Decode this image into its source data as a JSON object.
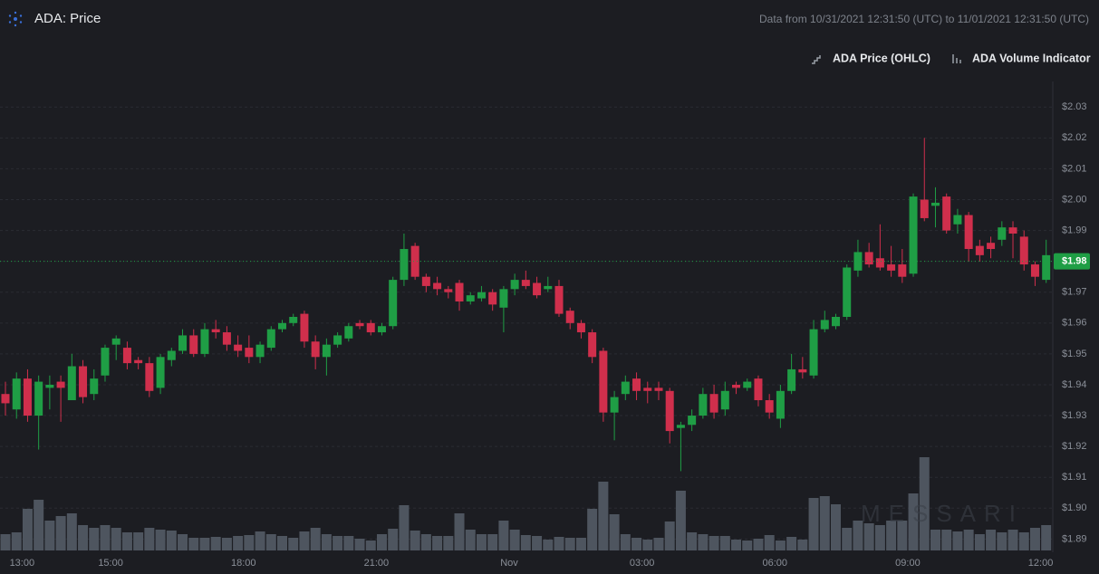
{
  "chart_data": {
    "type": "candlestick",
    "title": "ADA: Price",
    "subtitle": "Data from 10/31/2021 12:31:50 (UTC) to 11/01/2021 12:31:50 (UTC)",
    "legend": [
      "ADA Price (OHLC)",
      "ADA Volume Indicator"
    ],
    "watermark": "MESSARI",
    "up_color": "#1f9e45",
    "down_color": "#d02f4c",
    "volume_color": "#4e555f",
    "open": [
      1.937,
      1.932,
      1.942,
      1.93,
      1.939,
      1.941,
      1.935,
      1.946,
      1.937,
      1.943,
      1.953,
      1.952,
      1.948,
      1.947,
      1.939,
      1.948,
      1.951,
      1.956,
      1.95,
      1.958,
      1.957,
      1.953,
      1.952,
      1.949,
      1.952,
      1.958,
      1.96,
      1.963,
      1.954,
      1.949,
      1.953,
      1.955,
      1.96,
      1.96,
      1.957,
      1.959,
      1.974,
      1.985,
      1.975,
      1.973,
      1.971,
      1.973,
      1.967,
      1.968,
      1.97,
      1.965,
      1.971,
      1.974,
      1.973,
      1.971,
      1.972,
      1.964,
      1.96,
      1.957,
      1.951,
      1.931,
      1.937,
      1.942,
      1.939,
      1.939,
      1.938,
      1.926,
      1.927,
      1.93,
      1.937,
      1.932,
      1.94,
      1.939,
      1.942,
      1.935,
      1.929,
      1.938,
      1.945,
      1.943,
      1.958,
      1.959,
      1.962,
      1.977,
      1.983,
      1.981,
      1.979,
      1.979,
      1.976,
      2.0,
      1.998,
      2.001,
      1.992,
      1.995,
      1.985,
      1.986,
      1.987,
      1.991,
      1.988,
      1.979,
      1.974
    ],
    "high": [
      1.941,
      1.944,
      1.945,
      1.943,
      1.943,
      1.943,
      1.95,
      1.948,
      1.945,
      1.953,
      1.956,
      1.954,
      1.949,
      1.949,
      1.95,
      1.952,
      1.958,
      1.958,
      1.96,
      1.961,
      1.959,
      1.956,
      1.956,
      1.954,
      1.959,
      1.961,
      1.963,
      1.964,
      1.956,
      1.955,
      1.957,
      1.96,
      1.961,
      1.961,
      1.96,
      1.975,
      1.989,
      1.986,
      1.976,
      1.975,
      1.972,
      1.974,
      1.97,
      1.972,
      1.971,
      1.972,
      1.976,
      1.977,
      1.975,
      1.975,
      1.974,
      1.965,
      1.961,
      1.958,
      1.952,
      1.938,
      1.943,
      1.944,
      1.941,
      1.941,
      1.939,
      1.928,
      1.932,
      1.939,
      1.94,
      1.941,
      1.941,
      1.942,
      1.943,
      1.937,
      1.94,
      1.95,
      1.949,
      1.961,
      1.964,
      1.963,
      1.979,
      1.987,
      1.986,
      1.992,
      1.985,
      1.984,
      2.002,
      2.02,
      2.004,
      2.002,
      1.997,
      1.996,
      1.987,
      1.988,
      1.993,
      1.993,
      1.99,
      1.98,
      1.987
    ],
    "low": [
      1.93,
      1.929,
      1.928,
      1.919,
      1.932,
      1.928,
      1.935,
      1.934,
      1.935,
      1.941,
      1.948,
      1.945,
      1.945,
      1.936,
      1.937,
      1.946,
      1.95,
      1.949,
      1.949,
      1.955,
      1.951,
      1.949,
      1.947,
      1.947,
      1.951,
      1.957,
      1.959,
      1.952,
      1.945,
      1.943,
      1.952,
      1.954,
      1.958,
      1.956,
      1.956,
      1.958,
      1.972,
      1.974,
      1.97,
      1.969,
      1.968,
      1.964,
      1.966,
      1.967,
      1.964,
      1.957,
      1.969,
      1.971,
      1.968,
      1.97,
      1.962,
      1.958,
      1.955,
      1.947,
      1.928,
      1.922,
      1.935,
      1.935,
      1.934,
      1.935,
      1.921,
      1.912,
      1.925,
      1.929,
      1.929,
      1.93,
      1.937,
      1.938,
      1.933,
      1.929,
      1.926,
      1.937,
      1.942,
      1.942,
      1.957,
      1.958,
      1.961,
      1.975,
      1.978,
      1.977,
      1.975,
      1.973,
      1.975,
      1.993,
      1.991,
      1.989,
      1.989,
      1.98,
      1.98,
      1.981,
      1.985,
      1.981,
      1.977,
      1.972,
      1.973
    ],
    "close": [
      1.934,
      1.942,
      1.93,
      1.941,
      1.94,
      1.939,
      1.946,
      1.936,
      1.942,
      1.952,
      1.955,
      1.947,
      1.947,
      1.938,
      1.949,
      1.951,
      1.956,
      1.95,
      1.958,
      1.957,
      1.953,
      1.951,
      1.949,
      1.953,
      1.958,
      1.96,
      1.962,
      1.954,
      1.949,
      1.953,
      1.956,
      1.959,
      1.959,
      1.957,
      1.959,
      1.974,
      1.984,
      1.975,
      1.972,
      1.971,
      1.97,
      1.967,
      1.969,
      1.97,
      1.966,
      1.971,
      1.974,
      1.972,
      1.969,
      1.972,
      1.963,
      1.96,
      1.957,
      1.949,
      1.931,
      1.936,
      1.941,
      1.938,
      1.938,
      1.938,
      1.925,
      1.927,
      1.93,
      1.937,
      1.931,
      1.938,
      1.939,
      1.941,
      1.935,
      1.931,
      1.938,
      1.945,
      1.944,
      1.958,
      1.961,
      1.962,
      1.978,
      1.983,
      1.979,
      1.978,
      1.977,
      1.975,
      2.001,
      1.994,
      1.999,
      1.99,
      1.995,
      1.984,
      1.982,
      1.984,
      1.991,
      1.989,
      1.979,
      1.975,
      1.982
    ],
    "volume": [
      18,
      20,
      46,
      56,
      33,
      38,
      41,
      28,
      25,
      28,
      25,
      20,
      20,
      25,
      23,
      22,
      18,
      14,
      14,
      15,
      14,
      16,
      17,
      21,
      18,
      16,
      14,
      21,
      25,
      18,
      16,
      16,
      13,
      11,
      18,
      24,
      50,
      22,
      18,
      16,
      16,
      41,
      23,
      18,
      18,
      33,
      23,
      17,
      16,
      12,
      15,
      14,
      14,
      46,
      76,
      40,
      18,
      14,
      12,
      14,
      32,
      66,
      20,
      18,
      16,
      16,
      12,
      11,
      13,
      17,
      11,
      15,
      12,
      58,
      60,
      51,
      25,
      33,
      30,
      28,
      33,
      33,
      63,
      103,
      23,
      23,
      21,
      23,
      18,
      23,
      20,
      23,
      20,
      25,
      28
    ],
    "ylim": [
      1.886,
      2.038
    ],
    "yticks": [
      {
        "value": 1.89,
        "label": "$1.89"
      },
      {
        "value": 1.9,
        "label": "$1.90"
      },
      {
        "value": 1.91,
        "label": "$1.91"
      },
      {
        "value": 1.92,
        "label": "$1.92"
      },
      {
        "value": 1.93,
        "label": "$1.93"
      },
      {
        "value": 1.94,
        "label": "$1.94"
      },
      {
        "value": 1.95,
        "label": "$1.95"
      },
      {
        "value": 1.96,
        "label": "$1.96"
      },
      {
        "value": 1.97,
        "label": "$1.97"
      },
      {
        "value": 1.98,
        "label": "$1.98"
      },
      {
        "value": 1.99,
        "label": "$1.99"
      },
      {
        "value": 2.0,
        "label": "$2.00"
      },
      {
        "value": 2.01,
        "label": "$2.01"
      },
      {
        "value": 2.02,
        "label": "$2.02"
      },
      {
        "value": 2.03,
        "label": "$2.03"
      }
    ],
    "xticks": [
      {
        "value": 1.5,
        "label": "13:00"
      },
      {
        "value": 9.5,
        "label": "15:00"
      },
      {
        "value": 21.5,
        "label": "18:00"
      },
      {
        "value": 33.5,
        "label": "21:00"
      },
      {
        "value": 45.5,
        "label": "Nov"
      },
      {
        "value": 57.5,
        "label": "03:00"
      },
      {
        "value": 69.5,
        "label": "06:00"
      },
      {
        "value": 81.5,
        "label": "09:00"
      },
      {
        "value": 93.5,
        "label": "12:00"
      }
    ],
    "last_price": {
      "value": 1.98,
      "label": "$1.98"
    },
    "grid": true
  }
}
